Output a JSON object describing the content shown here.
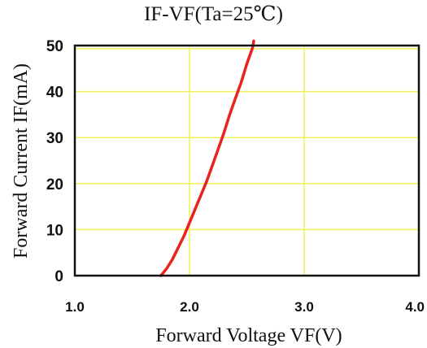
{
  "chart_data": {
    "type": "line",
    "title": "IF-VF(Ta=25℃)",
    "xlabel": "Forward Voltage VF(V)",
    "ylabel": "Forward Current IF(mA)",
    "xlim": [
      1.0,
      4.0
    ],
    "ylim": [
      0,
      50
    ],
    "x_ticks": [
      1.0,
      2.0,
      3.0,
      4.0
    ],
    "x_tick_labels": [
      "1.0",
      "2.0",
      "3.0",
      "4.0"
    ],
    "y_ticks": [
      0,
      10,
      20,
      30,
      40,
      50
    ],
    "y_tick_labels": [
      "0",
      "10",
      "20",
      "30",
      "40",
      "50"
    ],
    "grid": true,
    "colors": {
      "grid": "#f0ef5a",
      "line": "#e8231d",
      "frame": "#111111"
    },
    "series": [
      {
        "x": [
          1.75,
          1.8,
          1.85,
          1.9,
          1.95,
          2.0,
          2.05,
          2.1,
          2.15,
          2.2,
          2.25,
          2.3,
          2.35,
          2.4,
          2.45,
          2.5,
          2.55,
          2.56
        ],
        "y": [
          0,
          1.5,
          3.5,
          6,
          8.5,
          11.5,
          14.5,
          17.5,
          20.5,
          24,
          27.5,
          31,
          35,
          38.5,
          42,
          46,
          49.5,
          51
        ]
      }
    ]
  }
}
